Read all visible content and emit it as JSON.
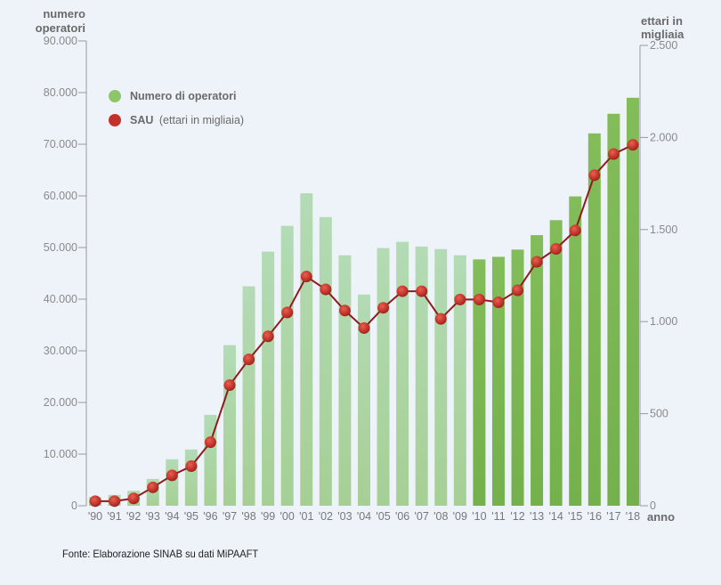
{
  "chart_data": {
    "type": "bar+line",
    "title": "",
    "categories": [
      "'90",
      "'91",
      "'92",
      "'93",
      "'94",
      "'95",
      "'96",
      "'97",
      "'98",
      "'99",
      "'00",
      "'01",
      "'02",
      "'03",
      "'04",
      "'05",
      "'06",
      "'07",
      "'08",
      "'09",
      "'10",
      "'11",
      "'12",
      "'13",
      "'14",
      "'15",
      "'16",
      "'17",
      "'18"
    ],
    "xlabel": "anno",
    "left_axis": {
      "label_line1": "numero",
      "label_line2": "operatori",
      "ylim": [
        0,
        90000
      ],
      "ticks": [
        0,
        10000,
        20000,
        30000,
        40000,
        50000,
        60000,
        70000,
        80000,
        90000
      ],
      "tick_labels": [
        "0",
        "10.000",
        "20.000",
        "30.000",
        "40.000",
        "50.000",
        "60.000",
        "70.000",
        "80.000",
        "90.000"
      ]
    },
    "right_axis": {
      "label_line1": "ettari in",
      "label_line2": "migliaia",
      "ylim": [
        0,
        2500
      ],
      "ticks": [
        0,
        500,
        1000,
        1500,
        2000,
        2500
      ],
      "tick_labels": [
        "0",
        "500",
        "1.000",
        "1.500",
        "2.000",
        "2.500"
      ]
    },
    "series": [
      {
        "name": "Numero di operatori",
        "type": "bar",
        "axis": "left",
        "color_light": "#a9d3a6",
        "color_dark": "#7ab551",
        "dark_from_index": 20,
        "values": [
          1700,
          2100,
          2900,
          5200,
          9000,
          10900,
          17600,
          31100,
          42500,
          49200,
          54200,
          60500,
          55900,
          48500,
          40900,
          49900,
          51100,
          50200,
          49700,
          48500,
          47700,
          48200,
          49600,
          52400,
          55300,
          59900,
          72100,
          75900,
          79000
        ]
      },
      {
        "name": "SAU",
        "name_suffix": "(ettari in migliaia)",
        "type": "line",
        "axis": "right",
        "color": "#c0322a",
        "line_color": "#8e1c1c",
        "values": [
          25,
          25,
          40,
          100,
          165,
          215,
          345,
          655,
          795,
          920,
          1050,
          1245,
          1175,
          1060,
          965,
          1075,
          1165,
          1165,
          1015,
          1120,
          1120,
          1105,
          1170,
          1325,
          1395,
          1495,
          1795,
          1910,
          1960
        ]
      }
    ],
    "legend": {
      "placement": "top-left"
    },
    "grid": false
  },
  "source": "Fonte: Elaborazione SINAB su dati MiPAAFT"
}
